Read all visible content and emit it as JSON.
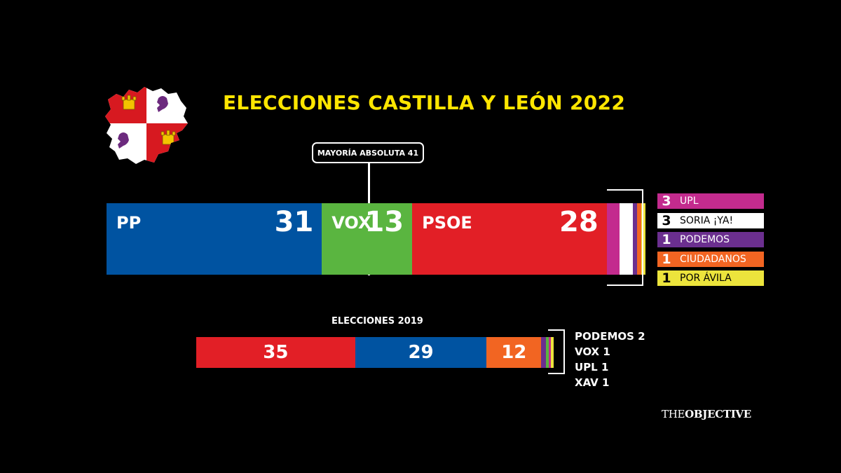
{
  "title": "ELECCIONES CASTILLA Y LEÓN 2022",
  "majority_label": "MAYORÍA ABSOLUTA 41",
  "colors": {
    "PP": "#0053a1",
    "VOX": "#5ab540",
    "PSOE": "#e21f26",
    "UPL": "#c32b8e",
    "SORIA ¡YA!": "#ffffff",
    "PODEMOS": "#6b2f8f",
    "CIUDADANOS": "#f26522",
    "POR ÁVILA": "#ece43c",
    "XAV": "#ece43c",
    "title": "#ffe600"
  },
  "chart_data": [
    {
      "type": "bar",
      "title": "ELECCIONES CASTILLA Y LEÓN 2022",
      "stacked": true,
      "total": 81,
      "majority": 41,
      "series": [
        {
          "name": "PP",
          "value": 31
        },
        {
          "name": "VOX",
          "value": 13
        },
        {
          "name": "PSOE",
          "value": 28
        },
        {
          "name": "UPL",
          "value": 3
        },
        {
          "name": "SORIA ¡YA!",
          "value": 3
        },
        {
          "name": "PODEMOS",
          "value": 1
        },
        {
          "name": "CIUDADANOS",
          "value": 1
        },
        {
          "name": "POR ÁVILA",
          "value": 1
        }
      ]
    },
    {
      "type": "bar",
      "title": "ELECCIONES 2019",
      "stacked": true,
      "series": [
        {
          "value": 35,
          "color": "#e21f26"
        },
        {
          "value": 29,
          "color": "#0053a1"
        },
        {
          "value": 12,
          "color": "#f26522"
        },
        {
          "name": "PODEMOS",
          "value": 2,
          "color": "#6b2f8f"
        },
        {
          "name": "VOX",
          "value": 1,
          "color": "#5ab540"
        },
        {
          "name": "UPL",
          "value": 1,
          "color": "#c32b8e"
        },
        {
          "name": "XAV",
          "value": 1,
          "color": "#ece43c"
        }
      ]
    }
  ],
  "main_bar": {
    "pp": {
      "label": "PP",
      "value": "31"
    },
    "vox": {
      "label": "VOX",
      "value": "13"
    },
    "psoe": {
      "label": "PSOE",
      "value": "28"
    }
  },
  "legend": [
    {
      "num": "3",
      "name": "UPL"
    },
    {
      "num": "3",
      "name": "SORIA ¡YA!"
    },
    {
      "num": "1",
      "name": "PODEMOS"
    },
    {
      "num": "1",
      "name": "CIUDADANOS"
    },
    {
      "num": "1",
      "name": "POR ÁVILA"
    }
  ],
  "sub_title": "ELECCIONES 2019",
  "bar2019": {
    "v1": "35",
    "v2": "29",
    "v3": "12"
  },
  "others2019": [
    "PODEMOS 2",
    "VOX 1",
    "UPL 1",
    "XAV 1"
  ],
  "logo": {
    "part1": "THE",
    "part2": "OBJECTIVE"
  }
}
